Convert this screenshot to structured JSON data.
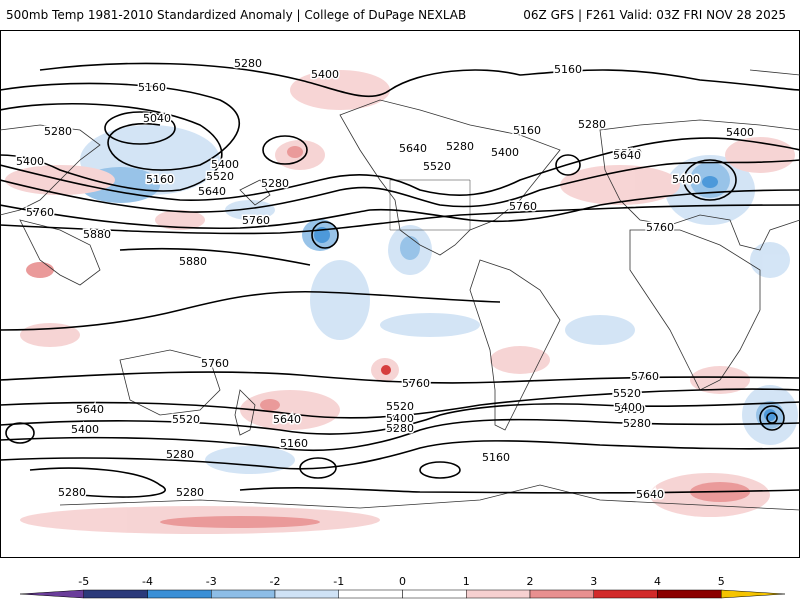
{
  "header": {
    "title": "500mb Temp 1981-2010 Standardized Anomaly | College of DuPage NEXLAB",
    "run": "06Z GFS | F261 Valid: 03Z FRI NOV 28 2025"
  },
  "contour_labels": [
    {
      "v": "5280"
    },
    {
      "v": "5400"
    },
    {
      "v": "5160"
    },
    {
      "v": "5160"
    },
    {
      "v": "5040"
    },
    {
      "v": "5280"
    },
    {
      "v": "5400"
    },
    {
      "v": "5400"
    },
    {
      "v": "5160"
    },
    {
      "v": "5520"
    },
    {
      "v": "5280"
    },
    {
      "v": "5640"
    },
    {
      "v": "5760"
    },
    {
      "v": "5760"
    },
    {
      "v": "5880"
    },
    {
      "v": "5880"
    },
    {
      "v": "5520"
    },
    {
      "v": "5640"
    },
    {
      "v": "5280"
    },
    {
      "v": "5400"
    },
    {
      "v": "5160"
    },
    {
      "v": "5280"
    },
    {
      "v": "5760"
    },
    {
      "v": "5520"
    },
    {
      "v": "5640"
    },
    {
      "v": "5400"
    },
    {
      "v": "5400"
    },
    {
      "v": "5760"
    },
    {
      "v": "5760"
    },
    {
      "v": "5760"
    },
    {
      "v": "5760"
    },
    {
      "v": "5640"
    },
    {
      "v": "5520"
    },
    {
      "v": "5400"
    },
    {
      "v": "5640"
    },
    {
      "v": "5520"
    },
    {
      "v": "5400"
    },
    {
      "v": "5280"
    },
    {
      "v": "5520"
    },
    {
      "v": "5400"
    },
    {
      "v": "5280"
    },
    {
      "v": "5160"
    },
    {
      "v": "5160"
    },
    {
      "v": "5280"
    },
    {
      "v": "5280"
    },
    {
      "v": "5640"
    },
    {
      "v": "5520"
    },
    {
      "v": "5400"
    },
    {
      "v": "5280"
    },
    {
      "v": "5280"
    }
  ],
  "colorbar": {
    "labels": [
      "-5",
      "-4",
      "-3",
      "-2",
      "-1",
      "0",
      "1",
      "2",
      "3",
      "4",
      "5"
    ],
    "colors": [
      "#6a3d9a",
      "#2b3a7a",
      "#3a8fd6",
      "#8dbde6",
      "#cfe2f5",
      "#ffffff",
      "#ffffff",
      "#f6d0d0",
      "#e89090",
      "#d22a2a",
      "#8b0000",
      "#f5c400"
    ]
  }
}
